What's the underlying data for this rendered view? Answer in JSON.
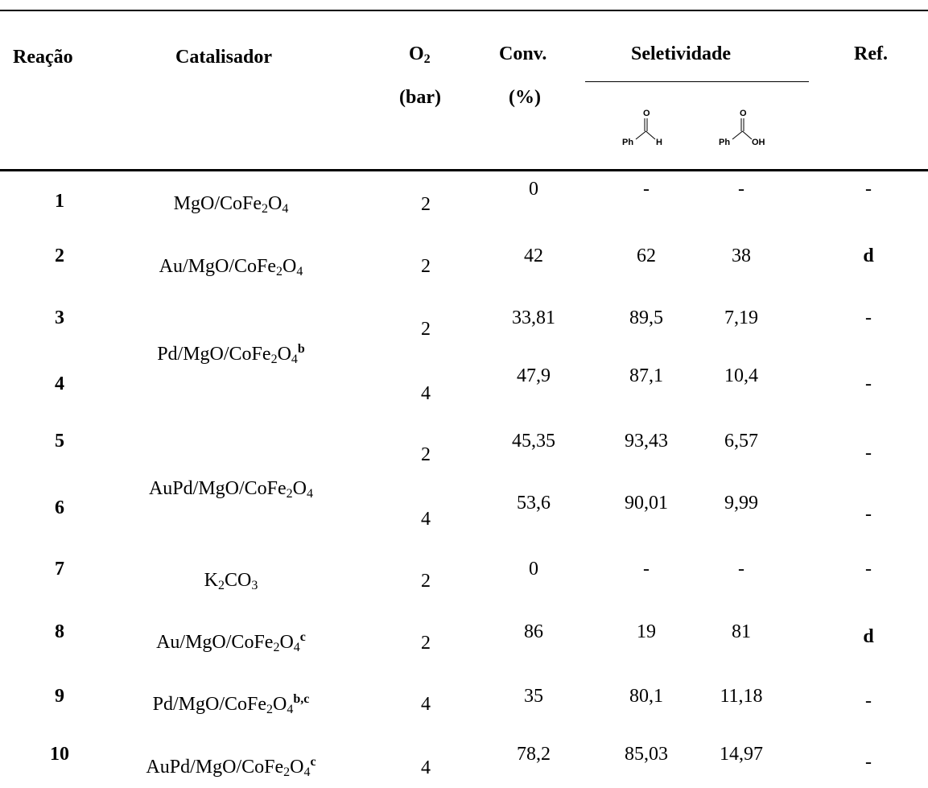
{
  "header": {
    "reacao": "Reação",
    "catalisador": "Catalisador",
    "o2_main": "O",
    "o2_sub": "2",
    "o2_unit": "(bar)",
    "conv": "Conv.",
    "conv_unit": "(%)",
    "seletividade": "Seletividade",
    "ref": "Ref."
  },
  "structures": {
    "aldehyde": {
      "o": "O",
      "left": "Ph",
      "right": "H"
    },
    "acid": {
      "o": "O",
      "left": "Ph",
      "right": "OH"
    }
  },
  "rows": [
    {
      "reacao": "1",
      "o2": "2",
      "conv": "0",
      "sel_ald": "-",
      "sel_acid": "-",
      "ref": "-"
    },
    {
      "reacao": "2",
      "o2": "2",
      "conv": "42",
      "sel_ald": "62",
      "sel_acid": "38",
      "ref": "d"
    },
    {
      "reacao": "3",
      "o2": "2",
      "conv": "33,81",
      "sel_ald": "89,5",
      "sel_acid": "7,19",
      "ref": "-"
    },
    {
      "reacao": "4",
      "o2": "4",
      "conv": "47,9",
      "sel_ald": "87,1",
      "sel_acid": "10,4",
      "ref": "-"
    },
    {
      "reacao": "5",
      "o2": "2",
      "conv": "45,35",
      "sel_ald": "93,43",
      "sel_acid": "6,57",
      "ref": "-"
    },
    {
      "reacao": "6",
      "o2": "4",
      "conv": "53,6",
      "sel_ald": "90,01",
      "sel_acid": "9,99",
      "ref": "-"
    },
    {
      "reacao": "7",
      "o2": "2",
      "conv": "0",
      "sel_ald": "-",
      "sel_acid": "-",
      "ref": "-"
    },
    {
      "reacao": "8",
      "o2": "2",
      "conv": "86",
      "sel_ald": "19",
      "sel_acid": "81",
      "ref": "d"
    },
    {
      "reacao": "9",
      "o2": "4",
      "conv": "35",
      "sel_ald": "80,1",
      "sel_acid": "11,18",
      "ref": "-"
    },
    {
      "reacao": "10",
      "o2": "4",
      "conv": "78,2",
      "sel_ald": "85,03",
      "sel_acid": "14,97",
      "ref": "-"
    }
  ],
  "catalysts": [
    {
      "parts": [
        "MgO/CoFe",
        "2",
        "O",
        "4",
        ""
      ]
    },
    {
      "parts": [
        "Au/MgO/CoFe",
        "2",
        "O",
        "4",
        ""
      ]
    },
    {
      "parts": [
        "Pd/MgO/CoFe",
        "2",
        "O",
        "4",
        "b"
      ]
    },
    {
      "parts": [
        "AuPd/MgO/CoFe",
        "2",
        "O",
        "4",
        ""
      ]
    },
    {
      "parts": [
        "K",
        "2",
        "CO",
        "3",
        ""
      ]
    },
    {
      "parts": [
        "Au/MgO/CoFe",
        "2",
        "O",
        "4",
        "c"
      ]
    },
    {
      "parts": [
        "Pd/MgO/CoFe",
        "2",
        "O",
        "4",
        "b,c"
      ]
    },
    {
      "parts": [
        "AuPd/MgO/CoFe",
        "2",
        "O",
        "4",
        "c"
      ]
    }
  ]
}
